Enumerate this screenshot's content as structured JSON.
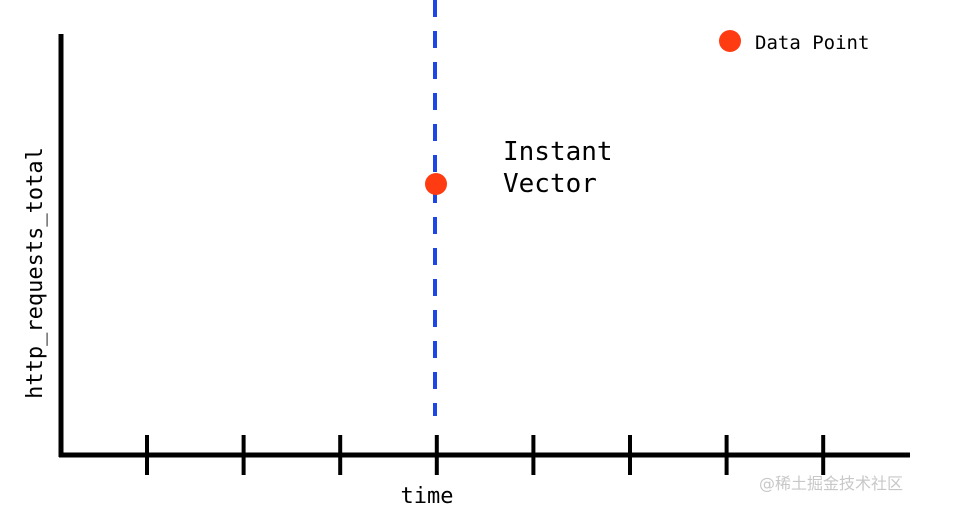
{
  "y_axis_label": "http_requests_total",
  "x_axis_label": "time",
  "legend": {
    "marker": "data-point-dot",
    "label": "Data Point"
  },
  "annotation": {
    "line1": "Instant",
    "line2": "Vector"
  },
  "watermark": "@稀土掘金技术社区",
  "tick_count": 8,
  "highlighted_tick": 4,
  "colors": {
    "axis": "#000000",
    "data_point": "#ff3b12",
    "instant_line": "#1e46e6",
    "watermark": "#c8c8c8"
  }
}
